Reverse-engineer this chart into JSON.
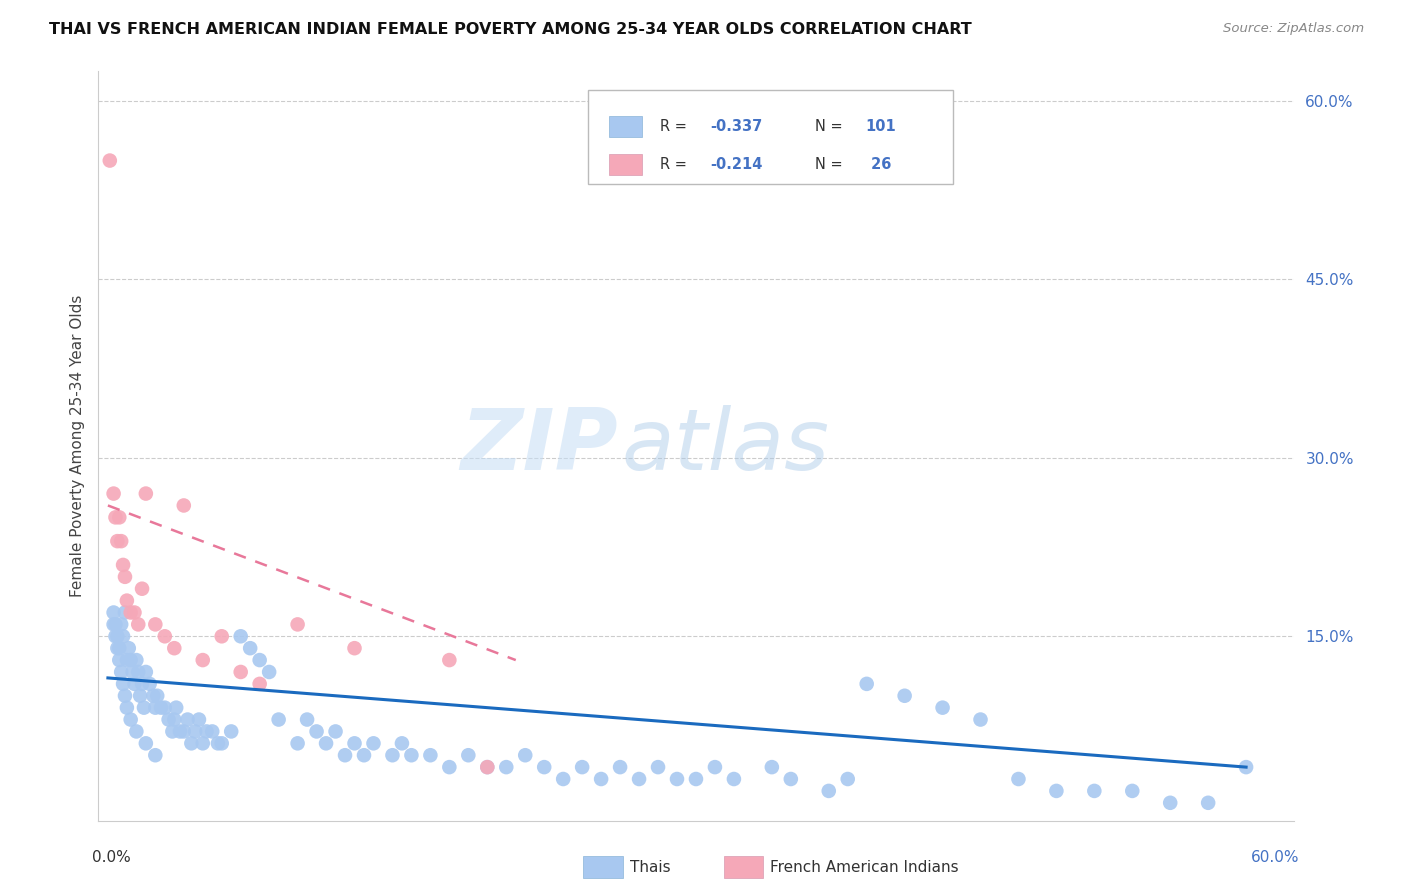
{
  "title": "THAI VS FRENCH AMERICAN INDIAN FEMALE POVERTY AMONG 25-34 YEAR OLDS CORRELATION CHART",
  "source": "Source: ZipAtlas.com",
  "ylabel": "Female Poverty Among 25-34 Year Olds",
  "watermark_zip": "ZIP",
  "watermark_atlas": "atlas",
  "legend_r1": "R = -0.337",
  "legend_n1": "N = 101",
  "legend_r2": "R = -0.214",
  "legend_n2": "N =  26",
  "blue_color": "#a8c8f0",
  "pink_color": "#f5a8b8",
  "trend_blue": "#1a6abf",
  "trend_pink": "#e8789a",
  "legend_label1": "Thais",
  "legend_label2": "French American Indians",
  "xmin": 0.0,
  "xmax": 0.6,
  "ymin": 0.0,
  "ymax": 0.6,
  "ytick_vals": [
    0.15,
    0.3,
    0.45,
    0.6
  ],
  "ytick_labels": [
    "15.0%",
    "30.0%",
    "45.0%",
    "60.0%"
  ],
  "thai_x": [
    0.003,
    0.004,
    0.005,
    0.006,
    0.007,
    0.008,
    0.009,
    0.01,
    0.011,
    0.012,
    0.013,
    0.014,
    0.015,
    0.016,
    0.017,
    0.018,
    0.019,
    0.02,
    0.022,
    0.024,
    0.025,
    0.026,
    0.028,
    0.03,
    0.032,
    0.034,
    0.035,
    0.036,
    0.038,
    0.04,
    0.042,
    0.044,
    0.046,
    0.048,
    0.05,
    0.052,
    0.055,
    0.058,
    0.06,
    0.065,
    0.07,
    0.075,
    0.08,
    0.085,
    0.09,
    0.1,
    0.105,
    0.11,
    0.115,
    0.12,
    0.125,
    0.13,
    0.135,
    0.14,
    0.15,
    0.155,
    0.16,
    0.17,
    0.18,
    0.19,
    0.2,
    0.21,
    0.22,
    0.23,
    0.24,
    0.25,
    0.26,
    0.27,
    0.28,
    0.29,
    0.3,
    0.31,
    0.32,
    0.33,
    0.35,
    0.36,
    0.38,
    0.39,
    0.4,
    0.42,
    0.44,
    0.46,
    0.48,
    0.5,
    0.52,
    0.54,
    0.56,
    0.58,
    0.6,
    0.003,
    0.004,
    0.005,
    0.006,
    0.007,
    0.008,
    0.009,
    0.01,
    0.012,
    0.015,
    0.02,
    0.025
  ],
  "thai_y": [
    0.17,
    0.16,
    0.15,
    0.14,
    0.16,
    0.15,
    0.17,
    0.13,
    0.14,
    0.13,
    0.12,
    0.11,
    0.13,
    0.12,
    0.1,
    0.11,
    0.09,
    0.12,
    0.11,
    0.1,
    0.09,
    0.1,
    0.09,
    0.09,
    0.08,
    0.07,
    0.08,
    0.09,
    0.07,
    0.07,
    0.08,
    0.06,
    0.07,
    0.08,
    0.06,
    0.07,
    0.07,
    0.06,
    0.06,
    0.07,
    0.15,
    0.14,
    0.13,
    0.12,
    0.08,
    0.06,
    0.08,
    0.07,
    0.06,
    0.07,
    0.05,
    0.06,
    0.05,
    0.06,
    0.05,
    0.06,
    0.05,
    0.05,
    0.04,
    0.05,
    0.04,
    0.04,
    0.05,
    0.04,
    0.03,
    0.04,
    0.03,
    0.04,
    0.03,
    0.04,
    0.03,
    0.03,
    0.04,
    0.03,
    0.04,
    0.03,
    0.02,
    0.03,
    0.11,
    0.1,
    0.09,
    0.08,
    0.03,
    0.02,
    0.02,
    0.02,
    0.01,
    0.01,
    0.04,
    0.16,
    0.15,
    0.14,
    0.13,
    0.12,
    0.11,
    0.1,
    0.09,
    0.08,
    0.07,
    0.06,
    0.05
  ],
  "fai_x": [
    0.001,
    0.003,
    0.004,
    0.005,
    0.006,
    0.007,
    0.008,
    0.009,
    0.01,
    0.012,
    0.014,
    0.016,
    0.018,
    0.02,
    0.025,
    0.03,
    0.035,
    0.04,
    0.05,
    0.06,
    0.07,
    0.08,
    0.1,
    0.13,
    0.18,
    0.2
  ],
  "fai_y": [
    0.55,
    0.27,
    0.25,
    0.23,
    0.25,
    0.23,
    0.21,
    0.2,
    0.18,
    0.17,
    0.17,
    0.16,
    0.19,
    0.27,
    0.16,
    0.15,
    0.14,
    0.26,
    0.13,
    0.15,
    0.12,
    0.11,
    0.16,
    0.14,
    0.13,
    0.04
  ],
  "thai_trend_x0": 0.0,
  "thai_trend_x1": 0.6,
  "thai_trend_y0": 0.115,
  "thai_trend_y1": 0.04,
  "fai_trend_x0": 0.0,
  "fai_trend_x1": 0.215,
  "fai_trend_y0": 0.26,
  "fai_trend_y1": 0.13
}
